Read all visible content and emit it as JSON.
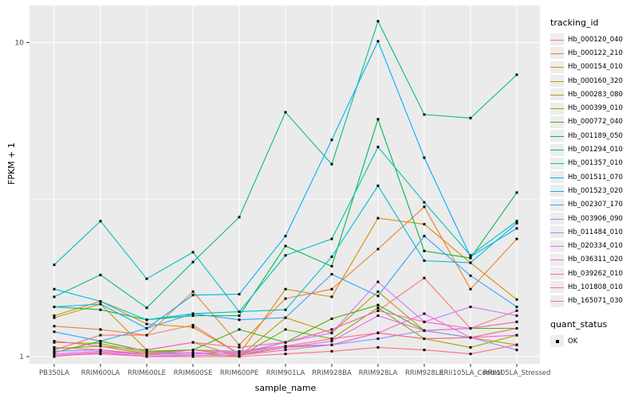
{
  "figure": {
    "background": "#FFFFFF",
    "panel_background": "#EBEBEB",
    "grid_color": "#FFFFFF",
    "tick_color": "#333333",
    "axis_text_color": "#4D4D4D"
  },
  "axes": {
    "y_title": "FPKM + 1",
    "x_title": "sample_name",
    "y_tick_labels": [
      "10",
      "1"
    ]
  },
  "legend": {
    "tracking_title": "tracking_id",
    "quant_title": "quant_status",
    "quant_items": [
      {
        "label": "OK",
        "swatch": "black-square"
      }
    ]
  },
  "chart_data": {
    "type": "line",
    "title": "",
    "xlabel": "sample_name",
    "ylabel": "FPKM + 1",
    "y_scale": "log10",
    "ylim": [
      1,
      13
    ],
    "y_major_ticks": [
      1,
      10
    ],
    "y_minor_gridline": 3.162,
    "grid": true,
    "legend_position": "right",
    "point_shape": "black-square",
    "point_color": "#000000",
    "x_categories": [
      "PB350LA",
      "RRIM600LA",
      "RRIM600LE",
      "RRIM600SE",
      "RRIM600PE",
      "RRIM901LA",
      "RRIM928BA",
      "RRIM928LA",
      "RRIM928LE",
      "RRII105LA_Control",
      "RRII105LA_Stressed"
    ],
    "series": [
      {
        "name": "Hb_000120_040",
        "color": "#F8766D",
        "values": [
          1.05,
          1.17,
          1.17,
          1.26,
          1.02,
          1.11,
          1.22,
          1.4,
          1.78,
          1.23,
          1.4
        ]
      },
      {
        "name": "Hb_000122_210",
        "color": "#EA8331",
        "values": [
          1.25,
          1.22,
          1.17,
          1.61,
          1.09,
          1.53,
          1.64,
          2.2,
          3.0,
          1.64,
          2.37
        ]
      },
      {
        "name": "Hb_000154_010",
        "color": "#D89000",
        "values": [
          1.35,
          1.5,
          1.27,
          1.24,
          1.02,
          1.64,
          1.55,
          2.76,
          2.64,
          1.99,
          1.52
        ]
      },
      {
        "name": "Hb_000160_320",
        "color": "#C09B00",
        "values": [
          1.33,
          1.47,
          1.05,
          1.11,
          1.0,
          1.33,
          1.19,
          1.61,
          1.21,
          1.15,
          1.09
        ]
      },
      {
        "name": "Hb_000283_080",
        "color": "#A3A500",
        "values": [
          1.11,
          1.1,
          1.03,
          1.05,
          1.01,
          1.07,
          1.09,
          1.19,
          1.14,
          1.07,
          1.17
        ]
      },
      {
        "name": "Hb_000399_010",
        "color": "#7CAE00",
        "values": [
          1.06,
          1.08,
          1.02,
          1.03,
          1.0,
          1.22,
          1.14,
          1.43,
          1.14,
          1.15,
          1.23
        ]
      },
      {
        "name": "Hb_000772_040",
        "color": "#39B600",
        "values": [
          1.03,
          1.12,
          1.04,
          1.05,
          1.22,
          1.11,
          1.32,
          1.46,
          1.21,
          1.23,
          1.23
        ]
      },
      {
        "name": "Hb_001189_050",
        "color": "#00BB4E",
        "values": [
          1.44,
          1.41,
          1.31,
          1.35,
          1.35,
          2.25,
          1.94,
          5.7,
          2.17,
          2.06,
          3.33
        ]
      },
      {
        "name": "Hb_001294_010",
        "color": "#00C087",
        "values": [
          1.55,
          1.82,
          1.43,
          2.0,
          2.78,
          6.0,
          4.1,
          11.7,
          5.9,
          5.75,
          7.9
        ]
      },
      {
        "name": "Hb_001357_010",
        "color": "#00C0B8",
        "values": [
          1.96,
          2.7,
          1.77,
          2.15,
          1.39,
          2.1,
          2.37,
          4.65,
          3.1,
          2.1,
          2.7
        ]
      },
      {
        "name": "Hb_001511_070",
        "color": "#00BCD8",
        "values": [
          1.64,
          1.5,
          1.31,
          1.37,
          1.39,
          1.41,
          2.08,
          3.5,
          2.02,
          1.99,
          2.66
        ]
      },
      {
        "name": "Hb_001523_020",
        "color": "#00B0F6",
        "values": [
          1.44,
          1.47,
          1.23,
          1.57,
          1.58,
          2.42,
          4.9,
          10.1,
          4.3,
          2.08,
          2.56
        ]
      },
      {
        "name": "Hb_002307_170",
        "color": "#35A2FF",
        "values": [
          1.2,
          1.12,
          1.23,
          1.37,
          1.31,
          1.33,
          1.83,
          1.56,
          2.42,
          1.81,
          1.44
        ]
      },
      {
        "name": "Hb_003906_090",
        "color": "#9590FF",
        "values": [
          1.04,
          1.05,
          1.01,
          1.05,
          1.04,
          1.08,
          1.09,
          1.14,
          1.21,
          1.15,
          1.05
        ]
      },
      {
        "name": "Hb_011484_010",
        "color": "#C77CFF",
        "values": [
          1.01,
          1.03,
          1.0,
          1.02,
          1.03,
          1.11,
          1.19,
          1.73,
          1.29,
          1.44,
          1.35
        ]
      },
      {
        "name": "Hb_020334_010",
        "color": "#E76BF3",
        "values": [
          1.02,
          1.04,
          1.01,
          1.03,
          1.02,
          1.07,
          1.12,
          1.35,
          1.21,
          1.23,
          1.29
        ]
      },
      {
        "name": "Hb_036311_020",
        "color": "#FA62DB",
        "values": [
          1.01,
          1.02,
          1.0,
          1.01,
          1.01,
          1.05,
          1.09,
          1.19,
          1.37,
          1.15,
          1.17
        ]
      },
      {
        "name": "Hb_039262_010",
        "color": "#FF62BC",
        "values": [
          1.12,
          1.08,
          1.05,
          1.11,
          1.07,
          1.11,
          1.22,
          1.4,
          1.29,
          1.23,
          1.29
        ]
      },
      {
        "name": "Hb_101808_010",
        "color": "#FF6A98",
        "values": [
          1.07,
          1.05,
          1.02,
          1.05,
          1.03,
          1.08,
          1.14,
          1.19,
          1.14,
          1.15,
          1.23
        ]
      },
      {
        "name": "Hb_165071_030",
        "color": "#FC717F",
        "values": [
          1.0,
          1.03,
          1.0,
          1.0,
          1.0,
          1.02,
          1.04,
          1.07,
          1.05,
          1.02,
          1.09
        ]
      }
    ]
  }
}
